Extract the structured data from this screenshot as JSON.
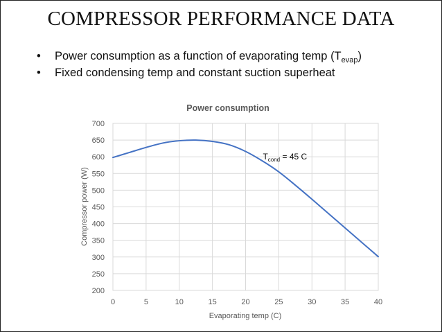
{
  "slide": {
    "title": "COMPRESSOR PERFORMANCE DATA",
    "bullets": [
      {
        "text": "Power consumption as a function of evaporating temp (T",
        "sub": "evap",
        "suffix": ")"
      },
      {
        "text": "Fixed condensing temp and constant suction superheat",
        "sub": "",
        "suffix": ""
      }
    ]
  },
  "chart_data": {
    "type": "line",
    "title": "Power consumption",
    "xlabel": "Evaporating temp (C)",
    "ylabel": "Compressor power (W)",
    "xlim": [
      0,
      40
    ],
    "ylim": [
      200,
      700
    ],
    "xticks": [
      0,
      5,
      10,
      15,
      20,
      25,
      30,
      35,
      40
    ],
    "yticks": [
      200,
      250,
      300,
      350,
      400,
      450,
      500,
      550,
      600,
      650,
      700
    ],
    "grid": true,
    "line_color": "#4472c4",
    "series": [
      {
        "x": [
          0,
          2.5,
          5,
          7.5,
          10,
          12.5,
          15,
          17.5,
          20,
          22.5,
          25,
          27.5,
          30,
          32.5,
          35,
          37.5,
          40
        ],
        "values": [
          598,
          613,
          628,
          641,
          648,
          650,
          646,
          636,
          616,
          588,
          555,
          515,
          473,
          430,
          387,
          344,
          301
        ]
      }
    ],
    "annotation": {
      "text": "T",
      "sub": "cond",
      "suffix": " = 45 C",
      "x": 22.5,
      "y": 600
    }
  }
}
